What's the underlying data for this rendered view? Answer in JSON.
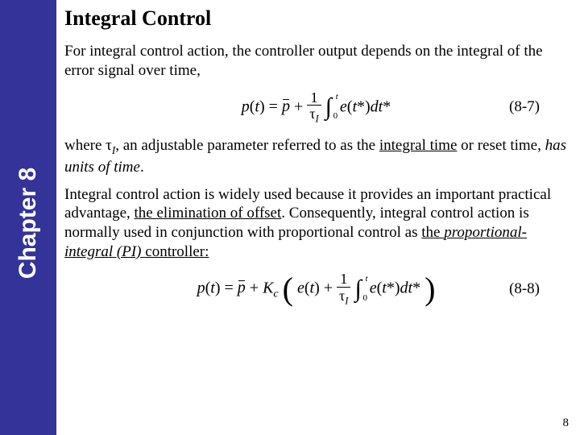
{
  "sidebar": {
    "label": "Chapter 8",
    "bg_color": "#333399",
    "text_color": "#ffffff"
  },
  "title": "Integral Control",
  "para1": "For integral control action, the controller output depends on the integral of the error signal over time,",
  "eq1_label": "(8-7)",
  "para2_a": "where ",
  "para2_b": ", an adjustable parameter referred to as the ",
  "para2_c": "integral time",
  "para2_d": " or reset time, ",
  "para2_e": "has units of time",
  "para2_f": ".",
  "para3_a": "Integral control action is widely used because it provides an important practical advantage, ",
  "para3_b": "the elimination of offset",
  "para3_c": ". Consequently, integral control action is normally used in conjunction with proportional control as ",
  "para3_d": "the ",
  "para3_e": "proportional-integral (PI)",
  "para3_f": " controller:",
  "eq2_label": "(8-8)",
  "page_number": "8"
}
